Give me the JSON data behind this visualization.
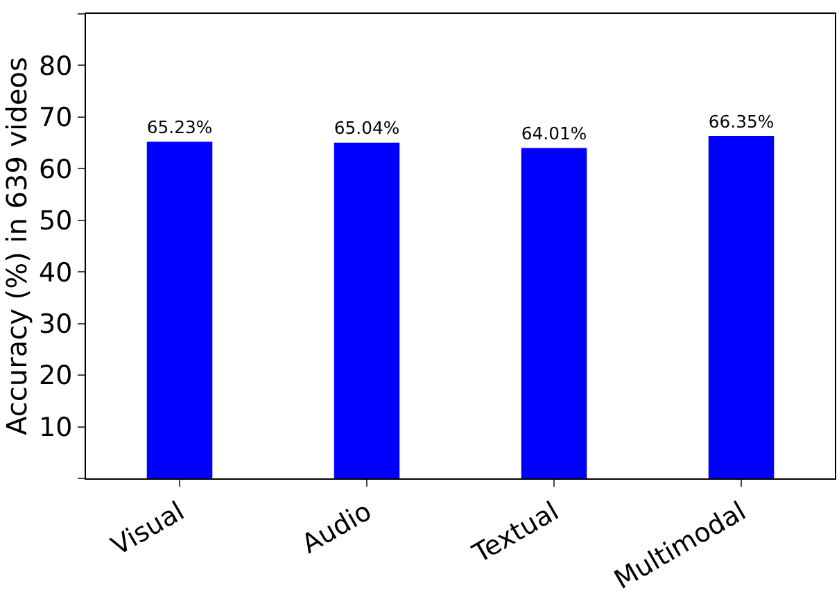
{
  "chart_data": {
    "type": "bar",
    "ylabel": "Accuracy (%) in 639 videos",
    "categories": [
      "Visual",
      "Audio",
      "Textual",
      "Multimodal"
    ],
    "values": [
      65.23,
      65.04,
      64.01,
      66.35
    ],
    "value_labels": [
      "65.23%",
      "65.04%",
      "64.01%",
      "66.35%"
    ],
    "color": "#0000ff",
    "ylim": [
      0,
      90
    ],
    "yticks": [
      {
        "value": 0,
        "label": null
      },
      10,
      20,
      30,
      40,
      50,
      60,
      70,
      80,
      {
        "value": 90,
        "label": null
      }
    ]
  }
}
